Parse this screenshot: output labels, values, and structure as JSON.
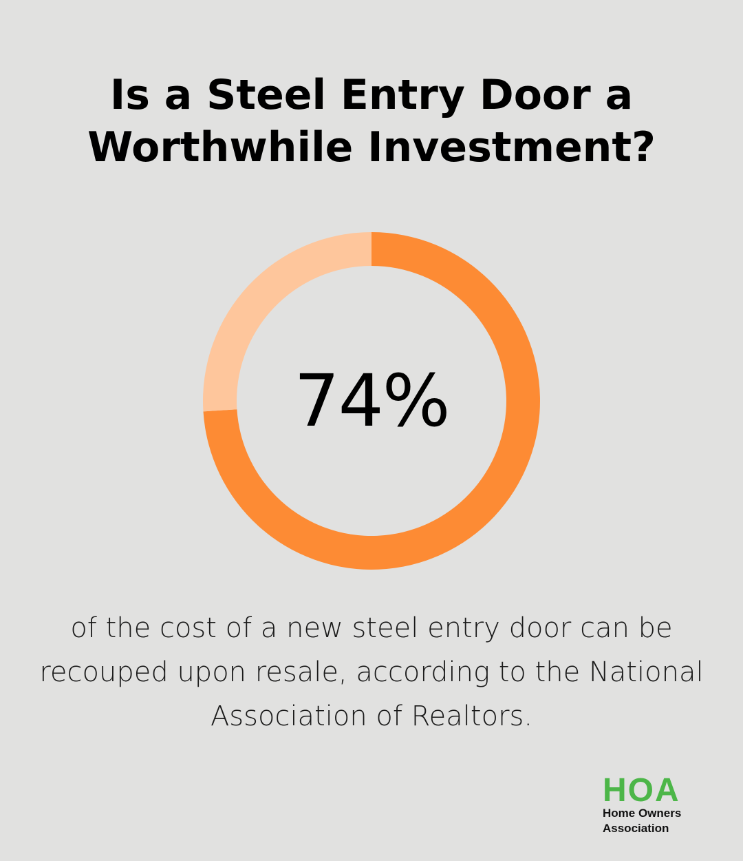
{
  "title": "Is a Steel Entry Door a Worthwhile Investment?",
  "caption": "of the cost of a new steel entry door can be recouped upon resale, according to the National Association of Realtors.",
  "logo": {
    "mark": "HOA",
    "line1": "Home Owners",
    "line2": "Association"
  },
  "colors": {
    "background": "#e1e1e0",
    "primary": "#fd8b34",
    "remainder": "#fec69c",
    "logo_green": "#4cb648"
  },
  "chart_data": {
    "type": "pie",
    "style": "donut",
    "center_label": "74%",
    "slices": [
      {
        "value": 74,
        "color": "#fd8b34"
      },
      {
        "value": 26,
        "color": "#fec69c"
      }
    ]
  }
}
